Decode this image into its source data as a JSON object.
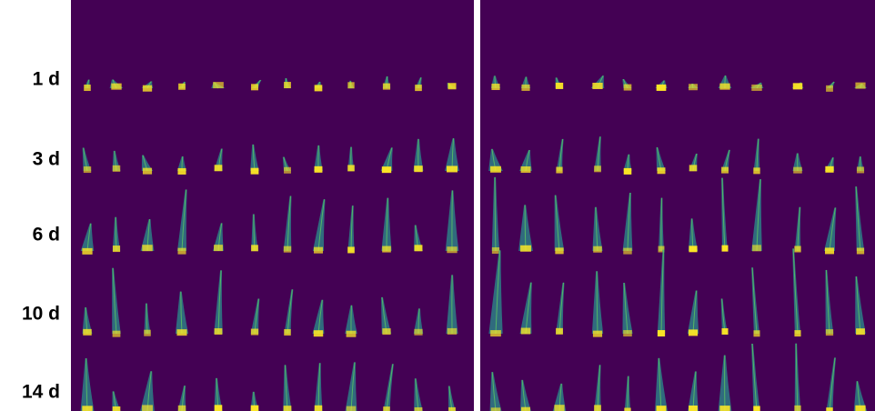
{
  "row_labels": [
    "1 d",
    "3 d",
    "6 d",
    "10 d",
    "14 d"
  ]
}
